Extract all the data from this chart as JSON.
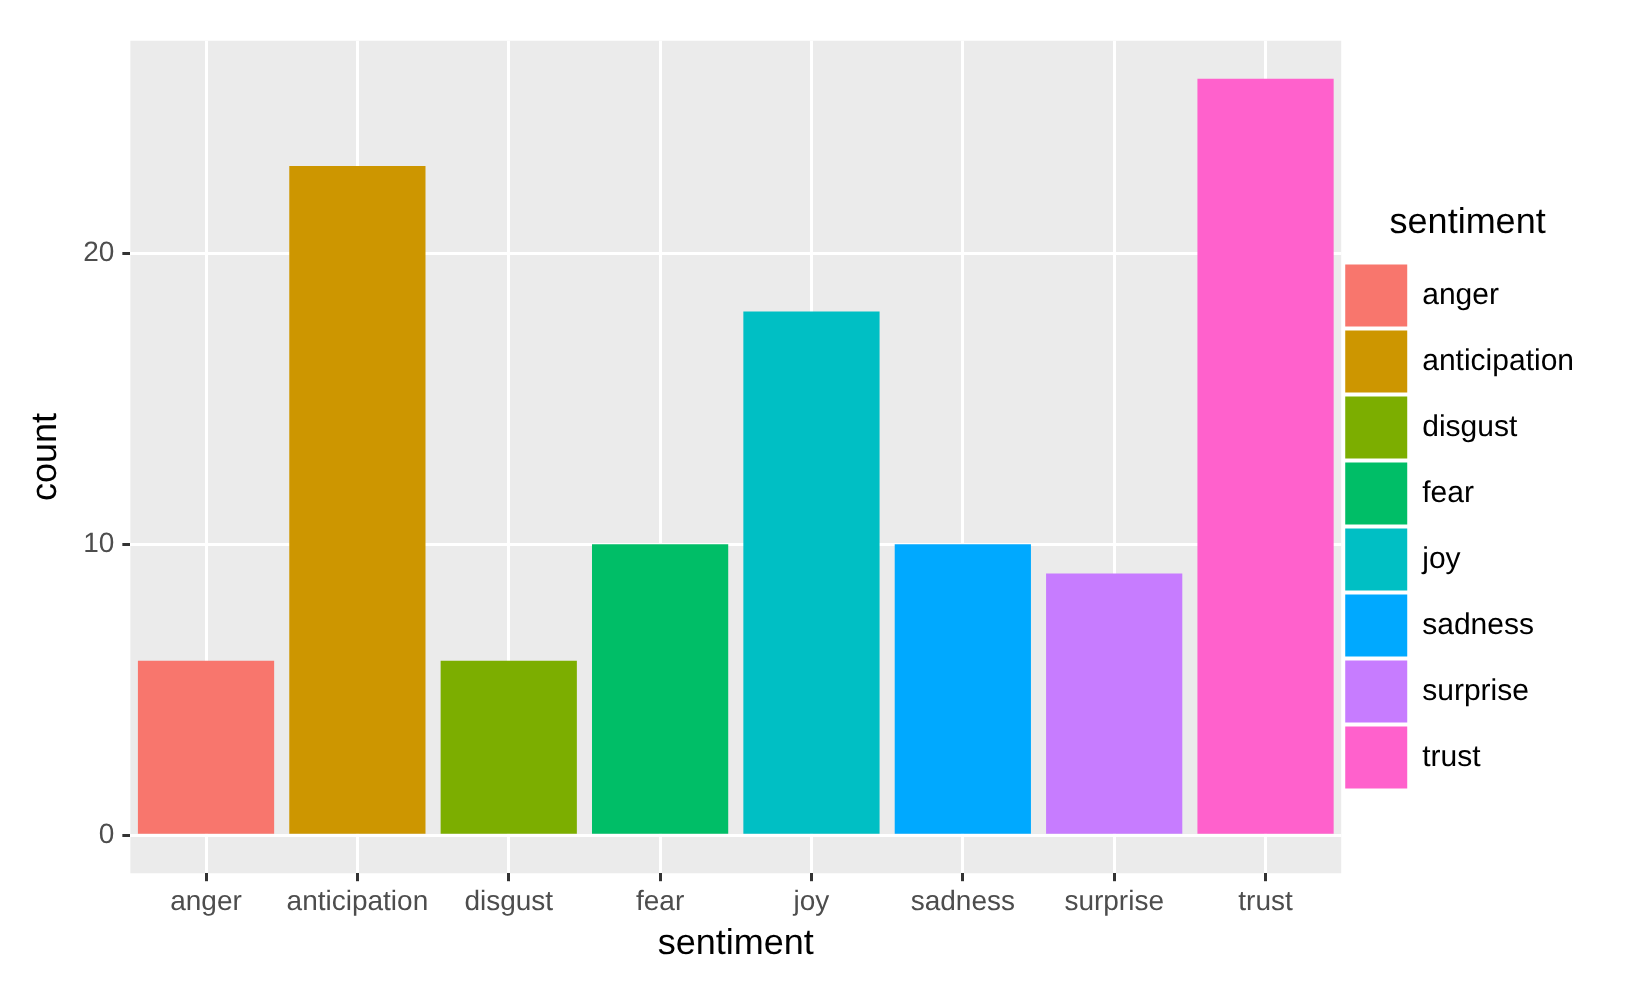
{
  "chart_data": {
    "type": "bar",
    "xlabel": "sentiment",
    "ylabel": "count",
    "legend_title": "sentiment",
    "categories": [
      "anger",
      "anticipation",
      "disgust",
      "fear",
      "joy",
      "sadness",
      "surprise",
      "trust"
    ],
    "series": [
      {
        "name": "anger",
        "color": "#f8766d",
        "values": [
          6,
          null,
          null,
          null,
          null,
          null,
          null,
          null
        ]
      },
      {
        "name": "anticipation",
        "color": "#cd9600",
        "values": [
          null,
          23,
          null,
          null,
          null,
          null,
          null,
          null
        ]
      },
      {
        "name": "disgust",
        "color": "#7cae00",
        "values": [
          null,
          null,
          6,
          null,
          null,
          null,
          null,
          null
        ]
      },
      {
        "name": "fear",
        "color": "#00be67",
        "values": [
          null,
          null,
          null,
          10,
          null,
          null,
          null,
          null
        ]
      },
      {
        "name": "joy",
        "color": "#00bfc4",
        "values": [
          null,
          null,
          null,
          null,
          18,
          null,
          null,
          null
        ]
      },
      {
        "name": "sadness",
        "color": "#00a9ff",
        "values": [
          null,
          null,
          null,
          null,
          null,
          10,
          null,
          null
        ]
      },
      {
        "name": "surprise",
        "color": "#c77cff",
        "values": [
          null,
          null,
          null,
          null,
          null,
          null,
          9,
          null
        ]
      },
      {
        "name": "trust",
        "color": "#ff61cc",
        "values": [
          null,
          null,
          null,
          null,
          null,
          null,
          null,
          26
        ]
      }
    ],
    "ylim": [
      -1.3,
      27.3
    ],
    "yticks": [
      0,
      10,
      20
    ],
    "grid": true,
    "legend": "right"
  }
}
